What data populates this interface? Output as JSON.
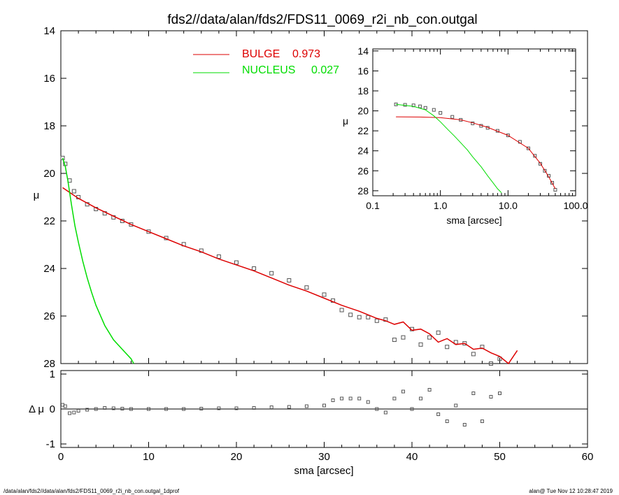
{
  "title": "fds2//data/alan/fds2/FDS11_0069_r2i_nb_con.outgal",
  "footer_left": "/data/alan/fds2//data/alan/fds2/FDS11_0069_r2i_nb_con.outgal_1dprof",
  "footer_right": "alan@  Tue Nov 12 10:28:47 2019",
  "colors": {
    "data": "#555555",
    "bulge": "#dd0000",
    "nucleus": "#00dd00",
    "axes": "#000000"
  },
  "chart_data": [
    {
      "type": "scatter",
      "panel": "main",
      "xlabel": "sma [arcsec]",
      "ylabel": "μ",
      "xlim": [
        0,
        60
      ],
      "ylim": [
        28,
        14
      ],
      "y_inverted": true,
      "xticks": [
        "0",
        "10",
        "20",
        "30",
        "40",
        "50",
        "60"
      ],
      "yticks": [
        "14",
        "16",
        "18",
        "20",
        "22",
        "24",
        "26",
        "28"
      ],
      "legend": {
        "position": "top-center",
        "entries": [
          {
            "label": "BULGE",
            "value": "0.973",
            "color": "#dd0000"
          },
          {
            "label": "NUCLEUS",
            "value": "0.027",
            "color": "#00dd00"
          }
        ]
      },
      "series": [
        {
          "marker": "square",
          "x": [
            0.2,
            0.5,
            1.0,
            1.5,
            2.0,
            3.0,
            4.0,
            5.0,
            6.0,
            7.0,
            8.0,
            10.0,
            12.0,
            14.0,
            16.0,
            18.0,
            20.0,
            22.0,
            24.0,
            26.0,
            28.0,
            30.0,
            31.0,
            32.0,
            33.0,
            34.0,
            35.0,
            36.0,
            37.0,
            38.0,
            39.0,
            40.0,
            41.0,
            42.0,
            43.0,
            44.0,
            45.0,
            46.0,
            47.0,
            48.0,
            49.0,
            50.0
          ],
          "y": [
            19.35,
            19.6,
            20.3,
            20.75,
            21.0,
            21.3,
            21.5,
            21.68,
            21.85,
            22.0,
            22.15,
            22.45,
            22.72,
            22.98,
            23.25,
            23.5,
            23.75,
            24.0,
            24.2,
            24.5,
            24.8,
            25.1,
            25.35,
            25.75,
            25.95,
            26.05,
            26.05,
            26.2,
            26.15,
            27.0,
            26.9,
            26.55,
            27.2,
            26.9,
            26.7,
            27.3,
            27.1,
            27.15,
            27.6,
            27.3,
            28.0,
            27.8
          ]
        },
        {
          "name": "BULGE",
          "x": [
            0.2,
            2,
            4,
            6,
            8,
            10,
            12,
            14,
            16,
            18,
            20,
            22,
            24,
            26,
            28,
            30,
            32,
            34,
            36,
            37,
            38,
            39,
            40,
            41,
            42,
            43,
            44,
            45,
            46,
            47,
            48,
            49,
            50,
            51,
            52
          ],
          "y": [
            20.6,
            21.05,
            21.45,
            21.8,
            22.15,
            22.45,
            22.75,
            23.05,
            23.3,
            23.6,
            23.85,
            24.1,
            24.4,
            24.7,
            24.95,
            25.25,
            25.55,
            25.8,
            26.1,
            26.2,
            26.35,
            26.25,
            26.6,
            26.55,
            26.75,
            27.1,
            26.95,
            27.2,
            27.15,
            27.4,
            27.35,
            27.55,
            27.7,
            28.0,
            27.45
          ]
        },
        {
          "name": "NUCLEUS",
          "x": [
            0.2,
            0.5,
            0.8,
            1.2,
            1.6,
            2.0,
            2.5,
            3.0,
            3.5,
            4.0,
            5.0,
            6.0,
            7.0,
            8.0,
            8.3
          ],
          "y": [
            19.35,
            19.7,
            20.3,
            21.3,
            22.2,
            22.9,
            23.7,
            24.4,
            25.0,
            25.55,
            26.4,
            27.0,
            27.4,
            27.8,
            28.0
          ]
        }
      ]
    },
    {
      "type": "scatter",
      "panel": "residual",
      "xlabel": "sma [arcsec]",
      "ylabel": "Δ μ",
      "xlim": [
        0,
        60
      ],
      "ylim": [
        -1.1,
        1.1
      ],
      "yticks": [
        "1",
        "0",
        "-1"
      ],
      "series": [
        {
          "marker": "square",
          "x": [
            0.2,
            0.5,
            1.0,
            1.5,
            2.0,
            3.0,
            4.0,
            5.0,
            6.0,
            7.0,
            8.0,
            10.0,
            12.0,
            14.0,
            16.0,
            18.0,
            20.0,
            22.0,
            24.0,
            26.0,
            28.0,
            30.0,
            31.0,
            32.0,
            33.0,
            34.0,
            35.0,
            36.0,
            37.0,
            38.0,
            39.0,
            40.0,
            41.0,
            42.0,
            43.0,
            44.0,
            45.0,
            46.0,
            47.0,
            48.0,
            49.0,
            50.0
          ],
          "y": [
            0.12,
            0.08,
            -0.12,
            -0.1,
            -0.05,
            -0.02,
            0.0,
            0.03,
            0.02,
            0.01,
            0.0,
            0.0,
            0.0,
            0.0,
            0.01,
            0.02,
            0.02,
            0.03,
            0.05,
            0.06,
            0.08,
            0.1,
            0.25,
            0.3,
            0.3,
            0.3,
            0.2,
            0.0,
            -0.1,
            0.3,
            0.5,
            0.0,
            0.3,
            0.55,
            -0.15,
            -0.35,
            0.1,
            -0.45,
            0.45,
            -0.35,
            0.35,
            0.45
          ]
        }
      ]
    },
    {
      "type": "scatter",
      "panel": "inset",
      "xlabel": "sma [arcsec]",
      "ylabel": "μ",
      "x_scale": "log",
      "xlim": [
        0.1,
        100
      ],
      "ylim": [
        28.5,
        13.8
      ],
      "xticks": [
        "0.1",
        "1.0",
        "10.0",
        "100.0"
      ],
      "yticks": [
        "14",
        "16",
        "18",
        "20",
        "22",
        "24",
        "26",
        "28"
      ],
      "series": [
        {
          "marker": "square",
          "x": [
            0.22,
            0.3,
            0.4,
            0.5,
            0.6,
            0.8,
            1.0,
            1.5,
            2.0,
            3.0,
            4.0,
            5.0,
            7.0,
            10.0,
            15.0,
            20.0,
            25.0,
            30.0,
            35.0,
            40.0,
            45.0,
            50.0
          ],
          "y": [
            19.35,
            19.4,
            19.45,
            19.55,
            19.7,
            19.9,
            20.2,
            20.6,
            20.9,
            21.25,
            21.5,
            21.7,
            22.0,
            22.45,
            23.1,
            23.75,
            24.5,
            25.3,
            26.0,
            26.5,
            27.2,
            27.9
          ]
        },
        {
          "name": "BULGE",
          "x": [
            0.22,
            0.5,
            1.0,
            2.0,
            3.0,
            5.0,
            10.0,
            20.0,
            30.0,
            40.0,
            50.0
          ],
          "y": [
            20.6,
            20.62,
            20.68,
            20.9,
            21.2,
            21.65,
            22.45,
            23.75,
            25.25,
            26.6,
            27.8
          ]
        },
        {
          "name": "NUCLEUS",
          "x": [
            0.22,
            0.4,
            0.6,
            0.8,
            1.0,
            1.3,
            1.6,
            2.0,
            2.5,
            3.0,
            4.0,
            5.0,
            6.0,
            7.0,
            8.0
          ],
          "y": [
            19.35,
            19.55,
            19.9,
            20.5,
            21.1,
            21.9,
            22.5,
            23.2,
            23.9,
            24.6,
            25.6,
            26.5,
            27.2,
            27.8,
            28.2
          ]
        }
      ]
    }
  ]
}
